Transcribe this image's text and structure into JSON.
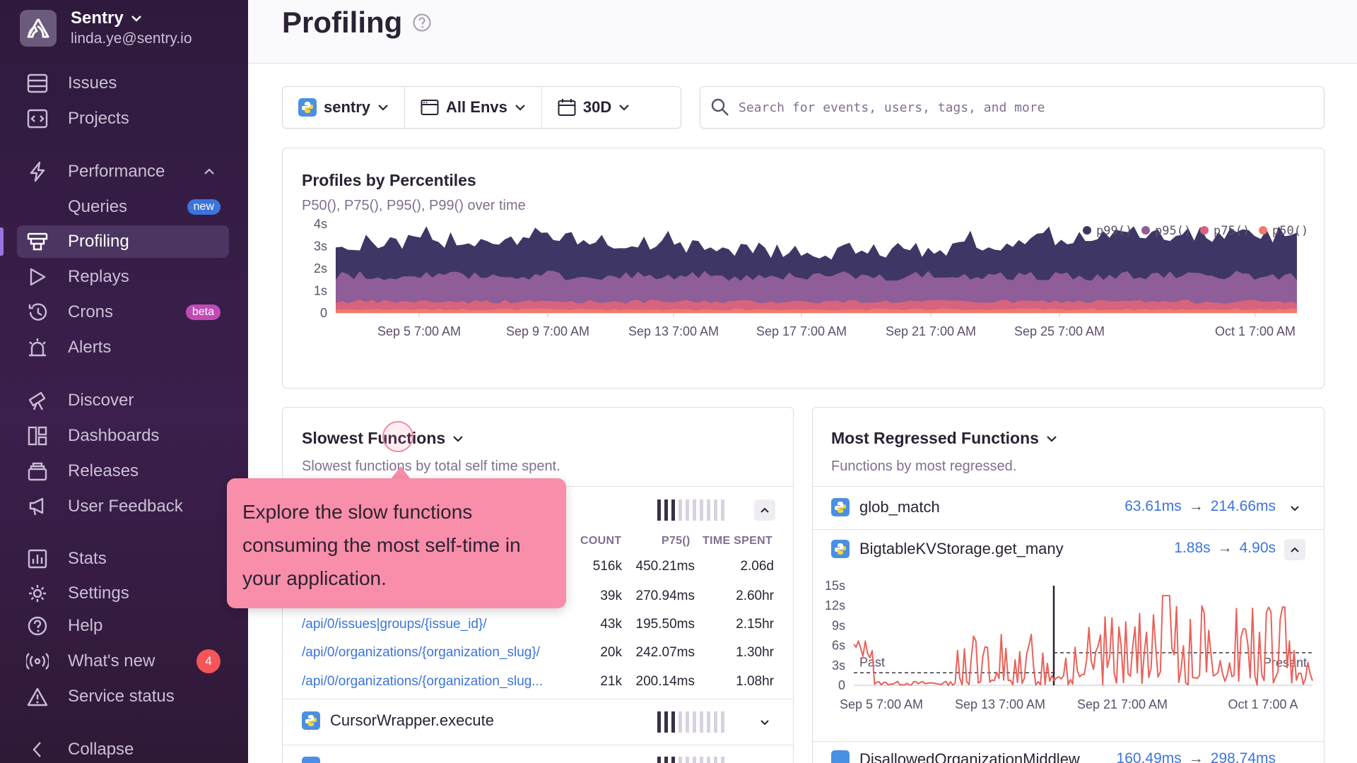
{
  "sidebar": {
    "org_name": "Sentry",
    "org_email": "linda.ye@sentry.io",
    "items": {
      "issues": "Issues",
      "projects": "Projects",
      "performance": "Performance",
      "queries": "Queries",
      "profiling": "Profiling",
      "replays": "Replays",
      "crons": "Crons",
      "alerts": "Alerts",
      "discover": "Discover",
      "dashboards": "Dashboards",
      "releases": "Releases",
      "user_feedback": "User Feedback",
      "stats": "Stats",
      "settings": "Settings",
      "help": "Help",
      "whats_new": "What's new",
      "service_status": "Service status",
      "collapse": "Collapse"
    },
    "badges": {
      "queries": "new",
      "crons": "beta",
      "whats_new": "4"
    }
  },
  "header": {
    "title": "Profiling"
  },
  "filters": {
    "project": "sentry",
    "env": "All Envs",
    "period": "30D"
  },
  "search": {
    "placeholder": "Search for events, users, tags, and more"
  },
  "percentiles": {
    "title": "Profiles by Percentiles",
    "subtitle": "P50(), P75(), P95(), P99() over time"
  },
  "chart_data": [
    {
      "type": "area",
      "title": "Profiles by Percentiles",
      "subtitle": "P50(), P75(), P95(), P99() over time",
      "y_ticks": [
        "0",
        "1s",
        "2s",
        "3s",
        "4s"
      ],
      "ylim": [
        0,
        4
      ],
      "x_ticks": [
        "Sep 5 7:00 AM",
        "Sep 9 7:00 AM",
        "Sep 13 7:00 AM",
        "Sep 17 7:00 AM",
        "Sep 21 7:00 AM",
        "Sep 25 7:00 AM",
        "Oct 1 7:00 AM"
      ],
      "legend": [
        "p99()",
        "p95()",
        "p75()",
        "p50()"
      ],
      "legend_position": "top-right",
      "series": [
        {
          "name": "p99()",
          "color": "#3e3766",
          "approx_range_s": [
            2.3,
            3.7
          ]
        },
        {
          "name": "p95()",
          "color": "#8f5d97",
          "approx_range_s": [
            1.4,
            1.9
          ]
        },
        {
          "name": "p75()",
          "color": "#d7647c",
          "approx_range_s": [
            0.4,
            0.6
          ]
        },
        {
          "name": "p50()",
          "color": "#f07a6c",
          "approx_range_s": [
            0.1,
            0.2
          ]
        }
      ]
    },
    {
      "type": "line",
      "title": "BigtableKVStorage.get_many",
      "y_ticks": [
        "0",
        "3s",
        "6s",
        "9s",
        "12s",
        "15s"
      ],
      "ylim": [
        0,
        15
      ],
      "x_ticks": [
        "Sep 5 7:00 AM",
        "Sep 13 7:00 AM",
        "Sep 21 7:00 AM",
        "Oct 1 7:00 A"
      ],
      "annotations": [
        "Past",
        "Present"
      ],
      "series": [
        {
          "name": "duration",
          "color": "#e9625a"
        }
      ],
      "baselines_s": {
        "past": 1.88,
        "present": 4.9
      }
    }
  ],
  "slowest": {
    "title": "Slowest Functions",
    "subtitle": "Slowest functions by total self time spent.",
    "columns": {
      "count": "COUNT",
      "p75": "P75()",
      "time": "TIME SPENT"
    },
    "rows": [
      {
        "name": "",
        "count": "516k",
        "p75": "450.21ms",
        "time": "2.06d"
      },
      {
        "name": "",
        "count": "39k",
        "p75": "270.94ms",
        "time": "2.60hr"
      },
      {
        "name": "/api/0/issues|groups/{issue_id}/",
        "count": "43k",
        "p75": "195.50ms",
        "time": "2.15hr"
      },
      {
        "name": "/api/0/organizations/{organization_slug}/",
        "count": "20k",
        "p75": "242.07ms",
        "time": "1.30hr"
      },
      {
        "name": "/api/0/organizations/{organization_slug...",
        "count": "21k",
        "p75": "200.14ms",
        "time": "1.08hr"
      }
    ],
    "next_fn": "CursorWrapper.execute"
  },
  "tooltip": {
    "text": "Explore the slow functions consuming the most self-time in your application."
  },
  "regressed": {
    "title": "Most Regressed Functions",
    "subtitle": "Functions by most regressed.",
    "items": [
      {
        "name": "glob_match",
        "before": "63.61ms",
        "after": "214.66ms"
      },
      {
        "name": "BigtableKVStorage.get_many",
        "before": "1.88s",
        "after": "4.90s"
      },
      {
        "name": "DisallowedOrganizationMiddlew",
        "before": "160.49ms",
        "after": "298.74ms"
      }
    ]
  },
  "colors": {
    "accent": "#3c74dd",
    "sidebar_bg": "#2f1a3d",
    "tooltip": "#f88eaa"
  }
}
